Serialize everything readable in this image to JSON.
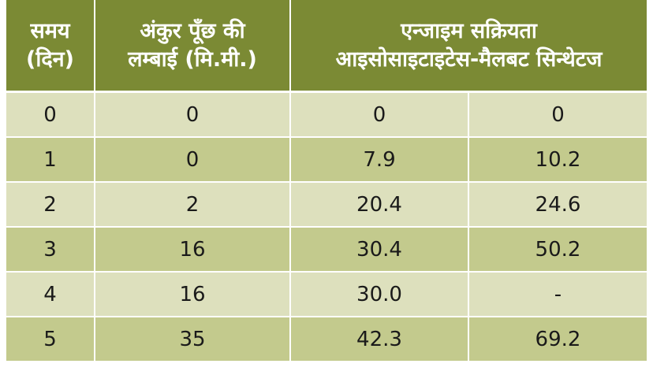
{
  "table": {
    "header": {
      "col0": [
        "समय",
        "(दिन)"
      ],
      "col1": [
        "अंकुर पूँछ की",
        "लम्बाई (मि.मी.)"
      ],
      "col23": [
        "एन्जाइम सक्रियता",
        "आइसोसाइटाइटेस-मैलबट सिन्थेटज"
      ]
    },
    "rows": [
      [
        "0",
        "0",
        "0",
        "0"
      ],
      [
        "1",
        "0",
        "7.9",
        "10.2"
      ],
      [
        "2",
        "2",
        "20.4",
        "24.6"
      ],
      [
        "3",
        "16",
        "30.4",
        "50.2"
      ],
      [
        "4",
        "16",
        "30.0",
        "-"
      ],
      [
        "5",
        "35",
        "42.3",
        "69.2"
      ]
    ]
  }
}
